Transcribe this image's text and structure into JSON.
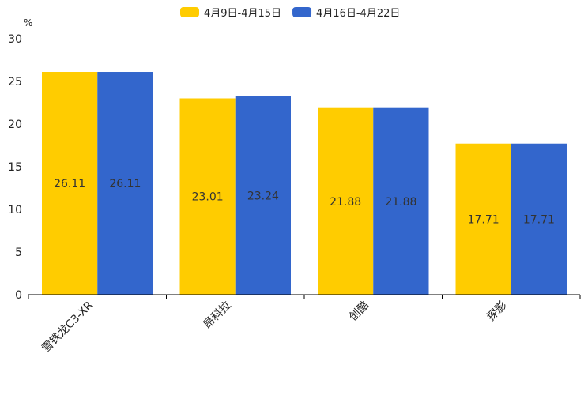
{
  "chart_data": {
    "type": "bar",
    "title": "",
    "ylabel": "%",
    "xlabel": "",
    "ylim": [
      0,
      30
    ],
    "yticks": [
      0,
      5,
      10,
      15,
      20,
      25,
      30
    ],
    "categories": [
      "雪铁龙C3-XR",
      "昂科拉",
      "创酷",
      "探影"
    ],
    "series": [
      {
        "name": "4月9日-4月15日",
        "color": "#FFCC00",
        "values": [
          26.11,
          23.01,
          21.88,
          17.71
        ]
      },
      {
        "name": "4月16日-4月22日",
        "color": "#3366CC",
        "values": [
          26.11,
          23.24,
          21.88,
          17.71
        ]
      }
    ],
    "legend": "top-center",
    "grid": false
  }
}
